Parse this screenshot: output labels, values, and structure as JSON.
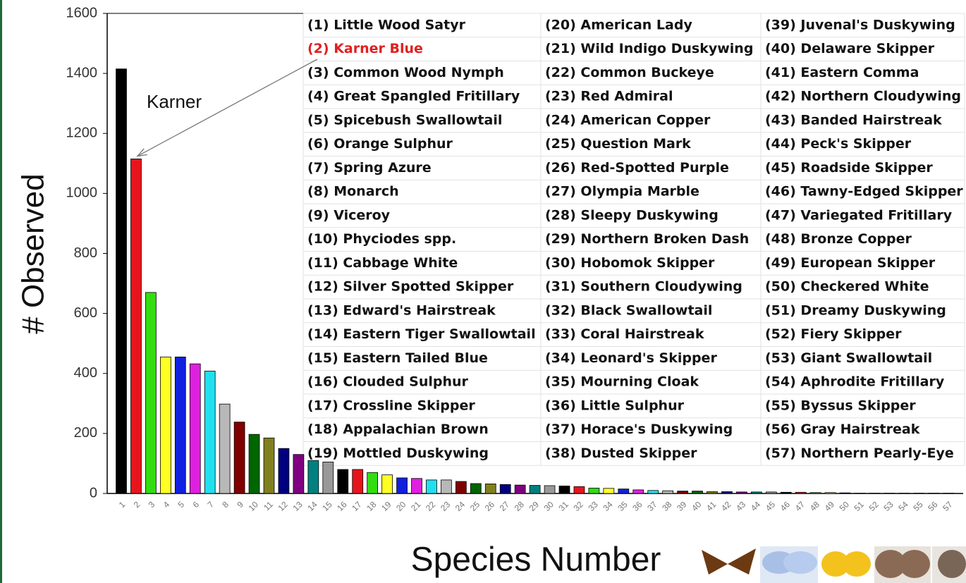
{
  "chart_data": {
    "type": "bar",
    "y_label": "# Observed",
    "x_label": "Species Number",
    "annotation": "Karner",
    "categories": [
      "1",
      "2",
      "3",
      "4",
      "5",
      "6",
      "7",
      "8",
      "9",
      "10",
      "11",
      "12",
      "13",
      "14",
      "15",
      "16",
      "17",
      "18",
      "19",
      "20",
      "21",
      "22",
      "23",
      "24",
      "25",
      "26",
      "27",
      "28",
      "29",
      "30",
      "31",
      "32",
      "33",
      "34",
      "35",
      "36",
      "37",
      "38",
      "39",
      "40",
      "41",
      "42",
      "43",
      "44",
      "45",
      "46",
      "47",
      "48",
      "49",
      "50",
      "51",
      "52",
      "53",
      "54",
      "55",
      "56",
      "57"
    ],
    "values": [
      1415,
      1115,
      670,
      455,
      455,
      432,
      408,
      298,
      238,
      197,
      185,
      150,
      130,
      110,
      105,
      80,
      80,
      70,
      62,
      52,
      50,
      45,
      45,
      40,
      33,
      32,
      30,
      28,
      27,
      26,
      25,
      23,
      18,
      17,
      15,
      12,
      10,
      9,
      8,
      8,
      6,
      6,
      5,
      5,
      5,
      4,
      4,
      3,
      3,
      2,
      1,
      1,
      1,
      1,
      1,
      1,
      1
    ],
    "palette": [
      "#000000",
      "#e8141c",
      "#33dd11",
      "#ffff22",
      "#1020e0",
      "#e020e0",
      "#20e0f0",
      "#b8b8b8",
      "#800000",
      "#006600",
      "#808020",
      "#000080",
      "#800080",
      "#008080",
      "#999999"
    ],
    "ylim": [
      0,
      1600
    ],
    "yticks": [
      0,
      200,
      400,
      600,
      800,
      1000,
      1200,
      1400,
      1600
    ],
    "legend": [
      {
        "label": "(1) Little Wood Satyr"
      },
      {
        "label": "(2) Karner Blue",
        "color": "#e02020"
      },
      {
        "label": "(3) Common Wood Nymph"
      },
      {
        "label": "(4) Great Spangled Fritillary"
      },
      {
        "label": "(5) Spicebush Swallowtail"
      },
      {
        "label": "(6) Orange Sulphur"
      },
      {
        "label": "(7) Spring Azure"
      },
      {
        "label": "(8) Monarch"
      },
      {
        "label": "(9) Viceroy"
      },
      {
        "label": "(10)  Phyciodes spp."
      },
      {
        "label": "(11)  Cabbage White"
      },
      {
        "label": "(12)  Silver Spotted Skipper"
      },
      {
        "label": "(13)  Edward's Hairstreak"
      },
      {
        "label": "(14)  Eastern Tiger Swallowtail"
      },
      {
        "label": "(15)  Eastern Tailed Blue"
      },
      {
        "label": "(16)  Clouded Sulphur"
      },
      {
        "label": "(17)  Crossline Skipper"
      },
      {
        "label": "(18)  Appalachian Brown"
      },
      {
        "label": "(19)  Mottled Duskywing"
      },
      {
        "label": "(20)  American Lady"
      },
      {
        "label": "(21)  Wild Indigo Duskywing"
      },
      {
        "label": "(22)  Common Buckeye"
      },
      {
        "label": "(23)  Red Admiral"
      },
      {
        "label": "(24)  American Copper"
      },
      {
        "label": "(25)  Question Mark"
      },
      {
        "label": "(26)  Red-Spotted Purple"
      },
      {
        "label": "(27)  Olympia Marble"
      },
      {
        "label": "(28)  Sleepy Duskywing"
      },
      {
        "label": "(29)  Northern Broken Dash"
      },
      {
        "label": "(30)  Hobomok Skipper"
      },
      {
        "label": "(31)  Southern Cloudywing"
      },
      {
        "label": "(32)  Black Swallowtail"
      },
      {
        "label": "(33)  Coral Hairstreak"
      },
      {
        "label": "(34)  Leonard's Skipper"
      },
      {
        "label": "(35)  Mourning Cloak"
      },
      {
        "label": "(36)  Little Sulphur"
      },
      {
        "label": "(37)  Horace's Duskywing"
      },
      {
        "label": "(38)  Dusted Skipper"
      },
      {
        "label": "(39)  Juvenal's Duskywing"
      },
      {
        "label": "(40)  Delaware Skipper"
      },
      {
        "label": "(41)  Eastern Comma"
      },
      {
        "label": "(42)  Northern Cloudywing"
      },
      {
        "label": "(43)  Banded Hairstreak"
      },
      {
        "label": "(44)  Peck's Skipper"
      },
      {
        "label": "(45)  Roadside Skipper"
      },
      {
        "label": "(46)  Tawny-Edged Skipper"
      },
      {
        "label": "(47)  Variegated Fritillary"
      },
      {
        "label": "(48)  Bronze Copper"
      },
      {
        "label": "(49)  European Skipper"
      },
      {
        "label": "(50)  Checkered White"
      },
      {
        "label": "(51)  Dreamy Duskywing"
      },
      {
        "label": "(52)  Fiery Skipper"
      },
      {
        "label": "(53)  Giant Swallowtail"
      },
      {
        "label": "(54)  Aphrodite Fritillary"
      },
      {
        "label": "(55)  Byssus Skipper"
      },
      {
        "label": "(56)  Gray Hairstreak"
      },
      {
        "label": "(57)  Northern Pearly-Eye"
      }
    ]
  }
}
